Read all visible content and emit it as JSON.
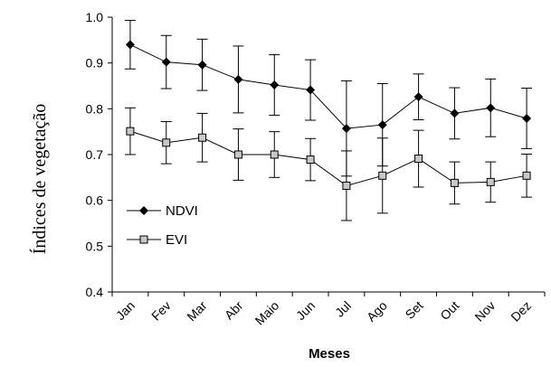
{
  "chart_data": {
    "type": "line",
    "xlabel": "Meses",
    "ylabel": "Índices de vegetação",
    "categories": [
      "Jan",
      "Fev",
      "Mar",
      "Abr",
      "Maio",
      "Jun",
      "Jul",
      "Ago",
      "Set",
      "Out",
      "Nov",
      "Dez"
    ],
    "ylim": [
      0.4,
      1.0
    ],
    "yticks": [
      "0.4",
      "0.5",
      "0.6",
      "0.7",
      "0.8",
      "0.9",
      "1.0"
    ],
    "grid": false,
    "legend_position": "center-left",
    "series": [
      {
        "name": "NDVI",
        "marker": "diamond",
        "marker_color": "#000000",
        "values": [
          0.94,
          0.902,
          0.896,
          0.864,
          0.852,
          0.841,
          0.757,
          0.765,
          0.826,
          0.79,
          0.802,
          0.779
        ],
        "error": [
          0.053,
          0.058,
          0.056,
          0.073,
          0.066,
          0.066,
          0.104,
          0.09,
          0.05,
          0.056,
          0.063,
          0.066
        ]
      },
      {
        "name": "EVI",
        "marker": "square",
        "marker_color": "#c8c8c8",
        "values": [
          0.751,
          0.726,
          0.737,
          0.7,
          0.7,
          0.689,
          0.632,
          0.654,
          0.691,
          0.638,
          0.64,
          0.654
        ],
        "error": [
          0.051,
          0.046,
          0.053,
          0.056,
          0.05,
          0.046,
          0.076,
          0.082,
          0.062,
          0.046,
          0.044,
          0.047
        ]
      }
    ]
  }
}
